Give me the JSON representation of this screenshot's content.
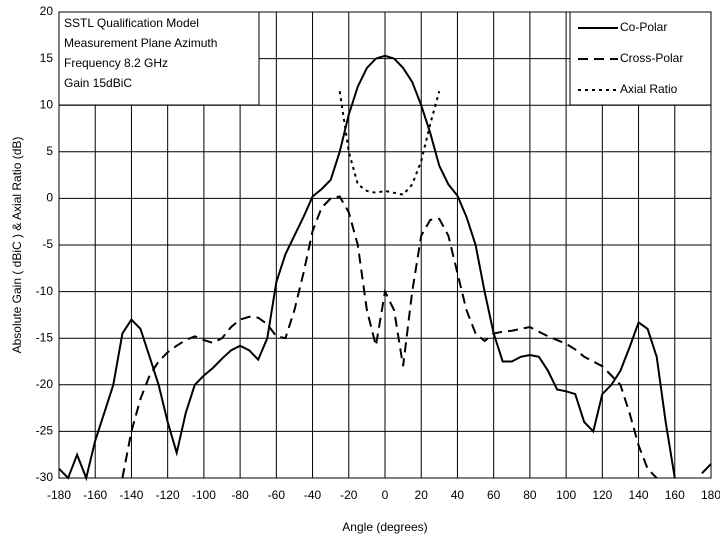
{
  "chart_data": {
    "type": "line",
    "annotation": [
      "SSTL Qualification Model",
      "Measurement Plane Azimuth",
      "Frequency  8.2 GHz",
      "Gain  15dBiC"
    ],
    "xlabel": "Angle (degrees)",
    "ylabel": "Absolute Gain ( dBiC ) & Axial Ratio (dB)",
    "xlim": [
      -180,
      180
    ],
    "xticks": [
      -180,
      -160,
      -140,
      -120,
      -100,
      -80,
      -60,
      -40,
      -20,
      0,
      20,
      40,
      60,
      80,
      100,
      120,
      140,
      160,
      180
    ],
    "ylim": [
      -30,
      20
    ],
    "yticks": [
      -30,
      -25,
      -20,
      -15,
      -10,
      -5,
      0,
      5,
      10,
      15,
      20
    ],
    "grid": true,
    "legend": "upper right",
    "x": [
      -180,
      -175,
      -170,
      -165,
      -160,
      -155,
      -150,
      -145,
      -140,
      -135,
      -130,
      -125,
      -120,
      -115,
      -110,
      -105,
      -100,
      -95,
      -90,
      -85,
      -80,
      -75,
      -70,
      -65,
      -60,
      -55,
      -50,
      -45,
      -40,
      -35,
      -30,
      -25,
      -20,
      -15,
      -10,
      -5,
      0,
      5,
      10,
      15,
      20,
      25,
      30,
      35,
      40,
      45,
      50,
      55,
      60,
      65,
      70,
      75,
      80,
      85,
      90,
      95,
      100,
      105,
      110,
      115,
      120,
      125,
      130,
      135,
      140,
      145,
      150,
      155,
      160,
      165,
      170,
      175,
      180
    ],
    "series": [
      {
        "name": "Co-Polar",
        "color": "#000000",
        "style": "solid",
        "values": [
          -29,
          -30,
          -27.5,
          -30,
          -26,
          -23,
          -20,
          -14.5,
          -13,
          -14,
          -17,
          -20,
          -24,
          -27.3,
          -23,
          -20,
          -19,
          -18.2,
          -17.2,
          -16.3,
          -15.8,
          -16.3,
          -17.3,
          -15,
          -9,
          -6,
          -4,
          -2,
          0.2,
          1,
          2,
          5,
          9,
          12,
          14,
          15,
          15.3,
          15,
          14,
          12.5,
          10,
          7,
          3.5,
          1.5,
          0.3,
          -2,
          -5,
          -10,
          -14.5,
          -17.5,
          -17.5,
          -17,
          -16.8,
          -17,
          -18.5,
          -20.5,
          -20.7,
          -21,
          -24,
          -25,
          -21,
          -20,
          -18.5,
          -16,
          -13.3,
          -14,
          -17,
          -24,
          -30,
          null,
          null,
          -29.5,
          -28.5
        ]
      },
      {
        "name": "Cross-Polar",
        "color": "#000000",
        "style": "dashed",
        "values": [
          null,
          null,
          null,
          null,
          null,
          null,
          null,
          -30,
          -25,
          -21.5,
          -19,
          -17.5,
          -16.5,
          -15.8,
          -15.2,
          -14.8,
          -15.2,
          -15.5,
          -15,
          -13.8,
          -13,
          -12.7,
          -12.8,
          -13.5,
          -14.8,
          -15,
          -12,
          -8,
          -3.5,
          -1,
          0,
          0.2,
          -1.5,
          -5,
          -12,
          -15.8,
          -10,
          -12,
          -18,
          -10,
          -4,
          -2.3,
          -2.2,
          -4,
          -8,
          -12,
          -14.5,
          -15.3,
          -14.5,
          -14.3,
          -14.2,
          -14,
          -13.8,
          -14.3,
          -14.8,
          -15.2,
          -15.6,
          -16.2,
          -17,
          -17.5,
          -18,
          -19,
          -20,
          -23,
          -26.5,
          -29,
          -30,
          null,
          null,
          null,
          null,
          null,
          null
        ]
      },
      {
        "name": "Axial Ratio",
        "color": "#000000",
        "style": "dotted",
        "values": [
          null,
          null,
          null,
          null,
          null,
          null,
          null,
          null,
          null,
          null,
          null,
          null,
          null,
          null,
          null,
          null,
          null,
          null,
          null,
          null,
          null,
          null,
          null,
          null,
          null,
          null,
          null,
          null,
          null,
          null,
          null,
          11.5,
          5,
          1.5,
          0.8,
          0.6,
          0.8,
          0.6,
          0.4,
          1.5,
          4,
          8,
          11.5,
          null,
          null,
          null,
          null,
          null,
          null,
          null,
          null,
          null,
          null,
          null,
          null,
          null,
          null,
          null,
          null,
          null,
          null,
          null,
          null,
          null,
          null,
          null,
          null,
          null,
          null,
          null,
          null,
          null,
          null
        ]
      }
    ]
  }
}
